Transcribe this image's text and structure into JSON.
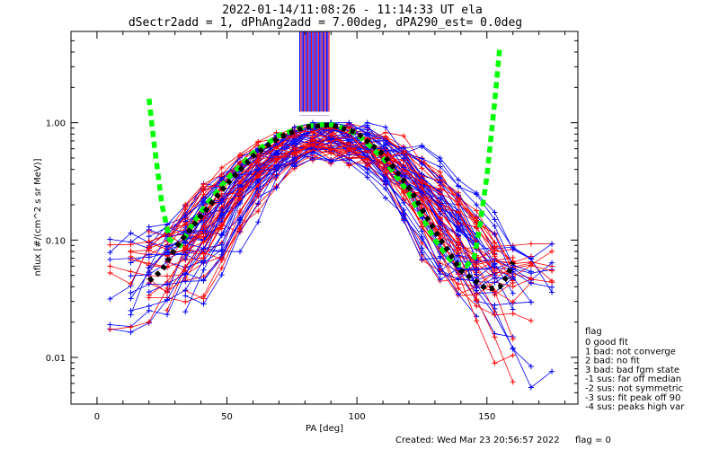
{
  "chart_data": {
    "type": "line",
    "title": "2022-01-14/11:08:26 - 11:14:33 UT ela",
    "subtitle": "dSectr2add = 1, dPhAng2add = 7.00deg, dPA290_est=    0.0deg",
    "xlabel": "PA [deg]",
    "ylabel": "nflux [#/(cm^2 s sr MeV)]",
    "xlim": [
      -10,
      185
    ],
    "ylim": [
      0.004,
      6.0
    ],
    "yscale": "log",
    "x_ticks": [
      0,
      50,
      100,
      150
    ],
    "x_tick_labels": [
      "0",
      "50",
      "100",
      "150"
    ],
    "y_ticks": [
      0.01,
      0.1,
      1.0
    ],
    "y_tick_labels": [
      "0.01",
      "0.10",
      "1.00"
    ],
    "colors": {
      "blue": "#0000ff",
      "red": "#ff0000",
      "green": "#00ff00",
      "black": "#000000"
    },
    "series": [
      {
        "color": "#00ff00",
        "style": "dashed-thick",
        "x": [
          20,
          22,
          25,
          28,
          32,
          37,
          42,
          50,
          60,
          70,
          80,
          88,
          92,
          100,
          110,
          120,
          130,
          137,
          142,
          145,
          147,
          150,
          153,
          155
        ],
        "y": [
          1.6,
          0.65,
          0.2,
          0.1,
          0.09,
          0.14,
          0.2,
          0.33,
          0.55,
          0.78,
          0.93,
          0.97,
          0.95,
          0.8,
          0.5,
          0.25,
          0.1,
          0.063,
          0.06,
          0.07,
          0.12,
          0.35,
          1.5,
          4.5
        ]
      },
      {
        "color": "#000000",
        "style": "dashed-thick",
        "x": [
          20,
          25,
          30,
          40,
          50,
          60,
          70,
          80,
          90,
          100,
          110,
          120,
          130,
          140,
          150,
          155,
          158,
          160
        ],
        "y": [
          0.045,
          0.055,
          0.085,
          0.16,
          0.3,
          0.52,
          0.75,
          0.92,
          0.96,
          0.82,
          0.54,
          0.28,
          0.12,
          0.055,
          0.038,
          0.04,
          0.05,
          0.065
        ]
      }
    ],
    "legend_title": "flag",
    "legend": [
      " 0 good fit",
      " 1 bad: not converge",
      " 2 bad: no fit",
      " 3 bad: bad fgm state",
      "-1 sus: far off median",
      "-2 sus: not symmetric",
      "-3 sus: fit peak off 90",
      "-4 sus: peaks high var"
    ],
    "legend_placement": "right"
  },
  "footer": {
    "created": "Created: Wed Mar 23 20:56:57 2022",
    "flag": "flag = 0"
  }
}
